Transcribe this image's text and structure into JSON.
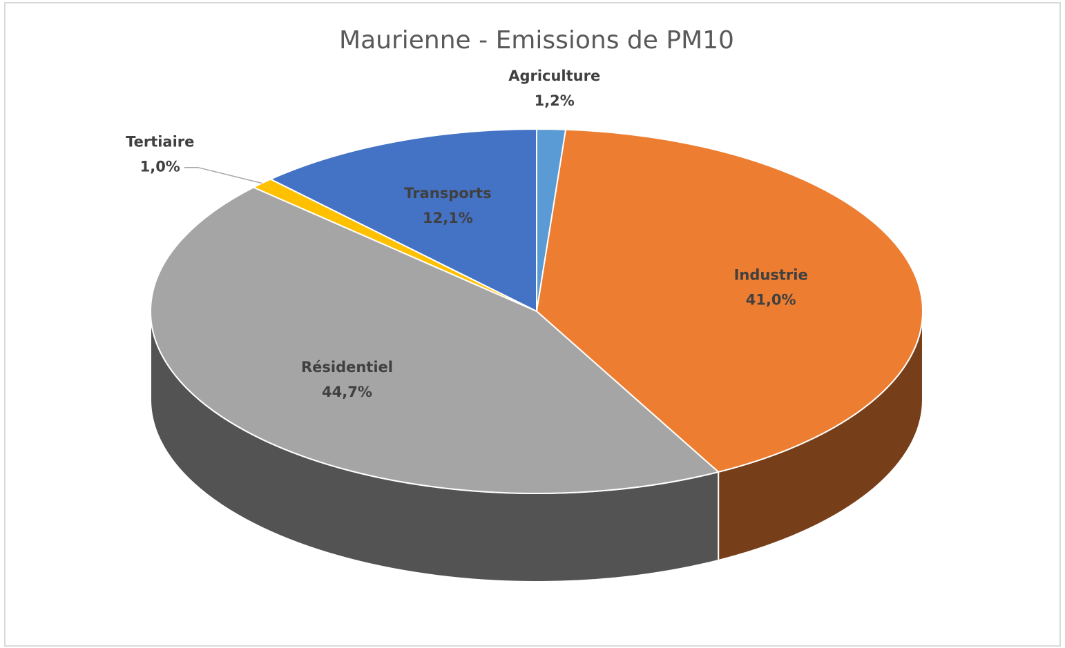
{
  "chart_data": {
    "type": "pie",
    "title": "Maurienne - Emissions de PM10",
    "categories": [
      "Agriculture",
      "Industrie",
      "Résidentiel",
      "Tertiaire",
      "Transports"
    ],
    "values": [
      1.2,
      41.0,
      44.7,
      1.0,
      12.1
    ],
    "value_labels": [
      "1,2%",
      "41,0%",
      "44,7%",
      "1,0%",
      "12,1%"
    ],
    "colors": [
      "#5b9bd5",
      "#ed7d31",
      "#a5a5a5",
      "#ffc000",
      "#4472c4"
    ]
  }
}
